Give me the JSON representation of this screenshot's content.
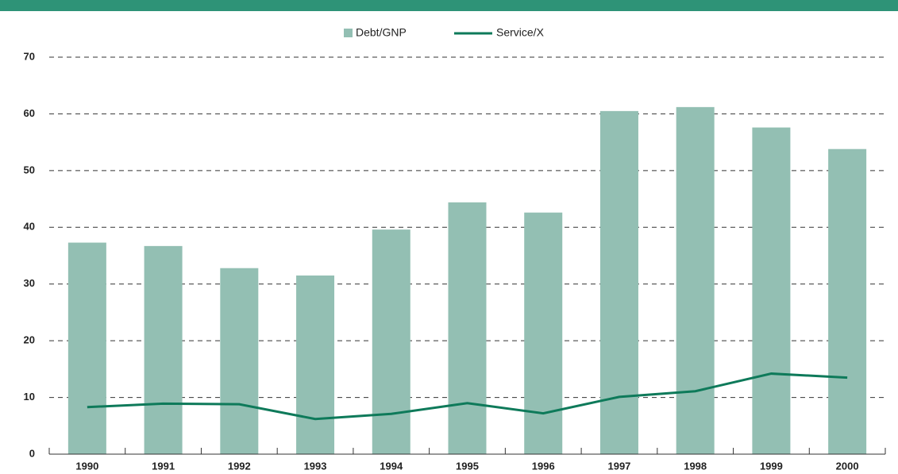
{
  "chart_data": {
    "type": "bar_line",
    "categories": [
      "1990",
      "1991",
      "1992",
      "1993",
      "1994",
      "1995",
      "1996",
      "1997",
      "1998",
      "1999",
      "2000"
    ],
    "series": [
      {
        "name": "Debt/GNP",
        "type": "bar",
        "color": "#93bfb3",
        "values": [
          37.3,
          36.7,
          32.8,
          31.5,
          39.6,
          44.4,
          42.6,
          60.5,
          61.2,
          57.6,
          53.8
        ]
      },
      {
        "name": "Service/X",
        "type": "line",
        "color": "#0e7a5a",
        "values": [
          8.3,
          8.9,
          8.8,
          6.2,
          7.1,
          9.0,
          7.2,
          10.1,
          11.1,
          14.2,
          13.5
        ]
      }
    ],
    "ylim": [
      0,
      70
    ],
    "yticks": [
      0,
      10,
      20,
      30,
      40,
      50,
      60,
      70
    ],
    "grid": true,
    "legend": "top"
  }
}
